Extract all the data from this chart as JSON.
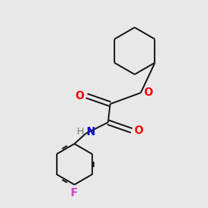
{
  "background_color": "#e8e8e8",
  "bond_color": "#1a1a1a",
  "oxygen_color": "#ff0000",
  "nitrogen_color": "#0000cc",
  "fluorine_color": "#cc44cc",
  "hydrogen_color": "#777777",
  "line_width": 1.6,
  "fig_size": [
    3.0,
    3.0
  ],
  "dpi": 100,
  "xlim": [
    0,
    10
  ],
  "ylim": [
    0,
    10
  ]
}
